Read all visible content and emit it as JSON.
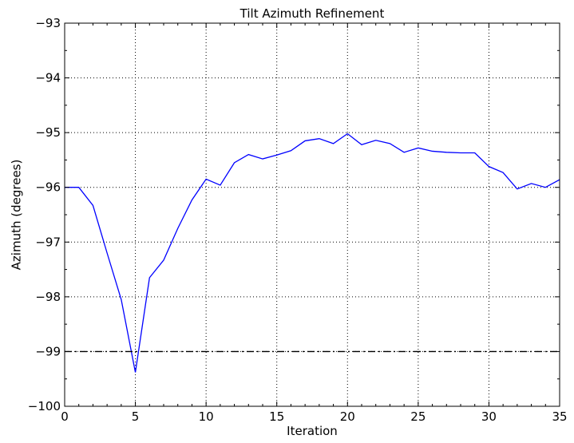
{
  "chart_data": {
    "type": "line",
    "title": "Tilt Azimuth Refinement",
    "xlabel": "Iteration",
    "ylabel": "Azimuth (degrees)",
    "xlim": [
      0,
      35
    ],
    "ylim": [
      -100,
      -93
    ],
    "xticks": [
      0,
      5,
      10,
      15,
      20,
      25,
      30,
      35
    ],
    "yticks": [
      -100,
      -99,
      -98,
      -97,
      -96,
      -95,
      -94,
      -93
    ],
    "xtick_labels": [
      "0",
      "5",
      "10",
      "15",
      "20",
      "25",
      "30",
      "35"
    ],
    "ytick_labels": [
      "−100",
      "−99",
      "−98",
      "−97",
      "−96",
      "−95",
      "−94",
      "−93"
    ],
    "grid": true,
    "series": [
      {
        "color": "#0000ff",
        "style": "solid",
        "x": [
          0,
          1,
          2,
          3,
          4,
          5,
          6,
          7,
          8,
          9,
          10,
          11,
          12,
          13,
          14,
          15,
          16,
          17,
          18,
          19,
          20,
          21,
          22,
          23,
          24,
          25,
          26,
          27,
          28,
          29,
          30,
          31,
          32,
          33,
          34,
          35
        ],
        "y": [
          -96.0,
          -96.0,
          -96.33,
          -97.2,
          -98.05,
          -99.38,
          -97.65,
          -97.33,
          -96.75,
          -96.23,
          -95.85,
          -95.96,
          -95.55,
          -95.4,
          -95.48,
          -95.41,
          -95.33,
          -95.15,
          -95.11,
          -95.2,
          -95.02,
          -95.22,
          -95.14,
          -95.2,
          -95.36,
          -95.28,
          -95.34,
          -95.36,
          -95.37,
          -95.37,
          -95.62,
          -95.73,
          -96.03,
          -95.93,
          -96.0,
          -95.86
        ]
      },
      {
        "color": "#000000",
        "style": "dashdot",
        "x": [
          0,
          35
        ],
        "y": [
          -99.0,
          -99.0
        ]
      }
    ]
  }
}
